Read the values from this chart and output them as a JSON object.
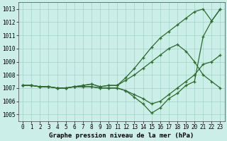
{
  "xlabel": "Graphe pression niveau de la mer (hPa)",
  "x": [
    0,
    1,
    2,
    3,
    4,
    5,
    6,
    7,
    8,
    9,
    10,
    11,
    12,
    13,
    14,
    15,
    16,
    17,
    18,
    19,
    20,
    21,
    22,
    23
  ],
  "line1": [
    1007.2,
    1007.2,
    1007.1,
    1007.1,
    1007.0,
    1007.0,
    1007.1,
    1007.1,
    1007.1,
    1007.0,
    1007.0,
    1007.0,
    1006.8,
    1006.5,
    1006.2,
    1005.8,
    1006.0,
    1006.5,
    1007.0,
    1007.5,
    1008.0,
    1008.8,
    1009.0,
    1009.5
  ],
  "line2": [
    1007.2,
    1007.2,
    1007.1,
    1007.1,
    1007.0,
    1007.0,
    1007.1,
    1007.1,
    1007.1,
    1007.0,
    1007.0,
    1007.0,
    1006.8,
    1006.3,
    1005.8,
    1005.1,
    1005.5,
    1006.2,
    1006.6,
    1007.2,
    1007.5,
    1010.9,
    1012.1,
    1013.0
  ],
  "line3": [
    1007.2,
    1007.2,
    1007.1,
    1007.1,
    1007.0,
    1007.0,
    1007.1,
    1007.2,
    1007.3,
    1007.1,
    1007.2,
    1007.2,
    1007.6,
    1008.0,
    1008.5,
    1009.0,
    1009.5,
    1010.0,
    1010.3,
    1009.8,
    1009.0,
    1008.0,
    1007.5,
    1007.0
  ],
  "line4": [
    1007.2,
    1007.2,
    1007.1,
    1007.1,
    1007.0,
    1007.0,
    1007.1,
    1007.2,
    1007.3,
    1007.1,
    1007.2,
    1007.2,
    1007.8,
    1008.5,
    1009.3,
    1010.1,
    1010.8,
    1011.3,
    1011.8,
    1012.3,
    1012.8,
    1013.0,
    1012.1,
    1013.0
  ],
  "line_color": "#2d6a2d",
  "bg_color": "#cceee8",
  "grid_color": "#99ccbb",
  "ylim": [
    1004.5,
    1013.5
  ],
  "yticks": [
    1005,
    1006,
    1007,
    1008,
    1009,
    1010,
    1011,
    1012,
    1013
  ],
  "xticks": [
    0,
    1,
    2,
    3,
    4,
    5,
    6,
    7,
    8,
    9,
    10,
    11,
    12,
    13,
    14,
    15,
    16,
    17,
    18,
    19,
    20,
    21,
    22,
    23
  ],
  "tick_fontsize": 5.5,
  "xlabel_fontsize": 6.5,
  "marker": "+",
  "markersize": 3.5,
  "linewidth": 0.9
}
